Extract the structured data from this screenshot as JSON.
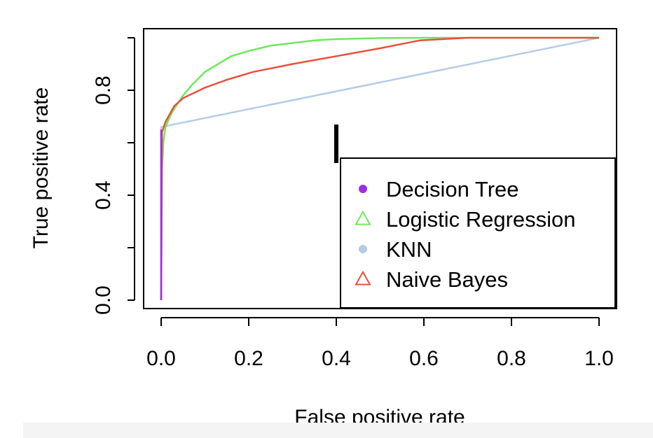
{
  "chart_data": {
    "type": "line",
    "title": "",
    "xlabel": "False positive rate",
    "ylabel": "True positive rate",
    "xlim": [
      0,
      1
    ],
    "ylim": [
      0,
      1
    ],
    "x_ticks": [
      "0.0",
      "0.2",
      "0.4",
      "0.6",
      "0.8",
      "1.0"
    ],
    "y_ticks": [
      "0.0",
      "0.4",
      "0.8"
    ],
    "y_tick_positions": [
      0,
      0.2,
      0.4,
      0.6,
      0.8,
      1.0
    ],
    "grid": false,
    "legend_position": "bottom-right",
    "series": [
      {
        "name": "Decision Tree",
        "color": "#9b30e8",
        "marker": "filled-circle",
        "x": [
          0,
          0,
          0
        ],
        "y": [
          0,
          0.65,
          0.65
        ]
      },
      {
        "name": "Logistic Regression",
        "color": "#6ee85a",
        "marker": "open-triangle",
        "x": [
          0,
          0.002,
          0.005,
          0.01,
          0.02,
          0.03,
          0.05,
          0.07,
          0.1,
          0.13,
          0.16,
          0.2,
          0.25,
          0.3,
          0.35,
          0.4,
          0.5,
          0.6,
          0.7,
          0.8,
          1.0
        ],
        "y": [
          0,
          0.5,
          0.6,
          0.66,
          0.7,
          0.73,
          0.78,
          0.82,
          0.87,
          0.9,
          0.93,
          0.95,
          0.97,
          0.98,
          0.99,
          0.995,
          0.999,
          1.0,
          1.0,
          1.0,
          1.0
        ]
      },
      {
        "name": "KNN",
        "color": "#b4cce4",
        "marker": "filled-circle",
        "x": [
          0,
          0.0,
          1.0
        ],
        "y": [
          0,
          0.66,
          1.0
        ]
      },
      {
        "name": "Naive Bayes",
        "color": "#e8503c",
        "marker": "open-triangle",
        "x": [
          0,
          0.002,
          0.01,
          0.02,
          0.03,
          0.05,
          0.1,
          0.15,
          0.21,
          0.3,
          0.4,
          0.5,
          0.59,
          0.7,
          0.8,
          1.0
        ],
        "y": [
          0,
          0.64,
          0.68,
          0.71,
          0.74,
          0.77,
          0.81,
          0.84,
          0.87,
          0.9,
          0.93,
          0.96,
          0.99,
          1.0,
          1.0,
          1.0
        ]
      }
    ]
  }
}
